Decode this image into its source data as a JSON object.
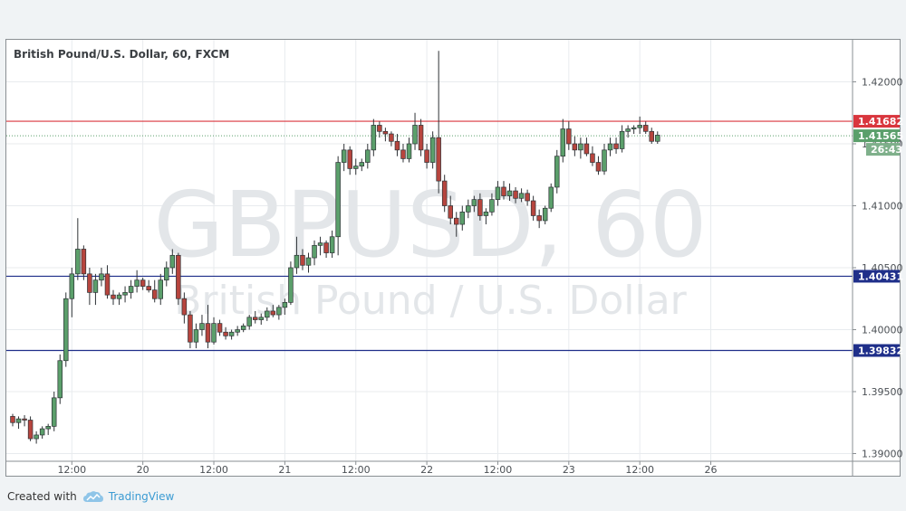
{
  "header": {
    "symbol_title": "British Pound/U.S. Dollar, 60, FXCM"
  },
  "watermark": {
    "ticker": "GBPUSD, 60",
    "name": "British Pound / U.S. Dollar"
  },
  "footer": {
    "created_with": "Created with",
    "brand": "TradingView"
  },
  "colors": {
    "up": "#5b9f6b",
    "down": "#b7453e",
    "resistance": "#d9363e",
    "support": "#1f2f8a",
    "current": "#5b9f6b"
  },
  "chart_data": {
    "type": "candlestick",
    "title": "British Pound/U.S. Dollar, 60, FXCM",
    "ylim": [
      1.3885,
      1.425
    ],
    "y_ticks": [
      "1.39000",
      "1.39500",
      "1.40000",
      "1.40500",
      "1.41000",
      "1.41500",
      "1.42000"
    ],
    "x_ticks": [
      {
        "index": 10,
        "label": "12:00"
      },
      {
        "index": 22,
        "label": "20"
      },
      {
        "index": 34,
        "label": "12:00"
      },
      {
        "index": 46,
        "label": "21"
      },
      {
        "index": 58,
        "label": "12:00"
      },
      {
        "index": 70,
        "label": "22"
      },
      {
        "index": 82,
        "label": "12:00"
      },
      {
        "index": 94,
        "label": "23"
      },
      {
        "index": 106,
        "label": "12:00"
      },
      {
        "index": 118,
        "label": "26"
      }
    ],
    "horizontal_lines": [
      {
        "price": 1.41682,
        "label": "1.41682",
        "role": "resistance"
      },
      {
        "price": 1.40431,
        "label": "1.40431",
        "role": "support"
      },
      {
        "price": 1.39832,
        "label": "1.39832",
        "role": "support"
      }
    ],
    "current_price": {
      "price": 1.41565,
      "label": "1.41565",
      "countdown": "26:43"
    },
    "candles": [
      [
        1.393,
        1.3932,
        1.3922,
        1.3925
      ],
      [
        1.3925,
        1.393,
        1.392,
        1.3928
      ],
      [
        1.3928,
        1.3931,
        1.3922,
        1.3927
      ],
      [
        1.3927,
        1.393,
        1.391,
        1.3912
      ],
      [
        1.3912,
        1.3918,
        1.3908,
        1.3915
      ],
      [
        1.3915,
        1.3922,
        1.3912,
        1.392
      ],
      [
        1.392,
        1.3924,
        1.3915,
        1.3922
      ],
      [
        1.3922,
        1.395,
        1.3918,
        1.3945
      ],
      [
        1.3945,
        1.398,
        1.394,
        1.3975
      ],
      [
        1.3975,
        1.403,
        1.397,
        1.4025
      ],
      [
        1.4025,
        1.405,
        1.401,
        1.4045
      ],
      [
        1.4045,
        1.409,
        1.404,
        1.4065
      ],
      [
        1.4065,
        1.4068,
        1.404,
        1.4045
      ],
      [
        1.4045,
        1.405,
        1.402,
        1.403
      ],
      [
        1.403,
        1.4045,
        1.402,
        1.404
      ],
      [
        1.404,
        1.405,
        1.4035,
        1.4045
      ],
      [
        1.4045,
        1.4052,
        1.4025,
        1.4028
      ],
      [
        1.4028,
        1.4032,
        1.402,
        1.4025
      ],
      [
        1.4025,
        1.403,
        1.402,
        1.4028
      ],
      [
        1.4028,
        1.4035,
        1.4022,
        1.403
      ],
      [
        1.403,
        1.404,
        1.4025,
        1.4035
      ],
      [
        1.4035,
        1.4048,
        1.403,
        1.404
      ],
      [
        1.404,
        1.4042,
        1.4032,
        1.4035
      ],
      [
        1.4035,
        1.404,
        1.403,
        1.4032
      ],
      [
        1.4032,
        1.404,
        1.4022,
        1.4025
      ],
      [
        1.4025,
        1.4045,
        1.402,
        1.404
      ],
      [
        1.404,
        1.4055,
        1.4035,
        1.405
      ],
      [
        1.405,
        1.4065,
        1.4045,
        1.406
      ],
      [
        1.406,
        1.4062,
        1.402,
        1.4025
      ],
      [
        1.4025,
        1.403,
        1.4005,
        1.4012
      ],
      [
        1.4012,
        1.4015,
        1.3985,
        1.399
      ],
      [
        1.399,
        1.4005,
        1.3985,
        1.4
      ],
      [
        1.4,
        1.4012,
        1.3995,
        1.4005
      ],
      [
        1.4005,
        1.402,
        1.3985,
        1.399
      ],
      [
        1.399,
        1.401,
        1.3988,
        1.4005
      ],
      [
        1.4005,
        1.4008,
        1.3995,
        1.3998
      ],
      [
        1.3998,
        1.4002,
        1.3992,
        1.3995
      ],
      [
        1.3995,
        1.4,
        1.3992,
        1.3998
      ],
      [
        1.3998,
        1.4003,
        1.3995,
        1.4
      ],
      [
        1.4,
        1.4005,
        1.3998,
        1.4003
      ],
      [
        1.4003,
        1.4012,
        1.4,
        1.401
      ],
      [
        1.401,
        1.4015,
        1.4005,
        1.4008
      ],
      [
        1.4008,
        1.4013,
        1.4004,
        1.401
      ],
      [
        1.401,
        1.4018,
        1.4007,
        1.4015
      ],
      [
        1.4015,
        1.402,
        1.401,
        1.4012
      ],
      [
        1.4012,
        1.402,
        1.4008,
        1.4018
      ],
      [
        1.4018,
        1.4025,
        1.4012,
        1.4022
      ],
      [
        1.4022,
        1.4055,
        1.402,
        1.405
      ],
      [
        1.405,
        1.4075,
        1.4045,
        1.406
      ],
      [
        1.406,
        1.4065,
        1.4048,
        1.4052
      ],
      [
        1.4052,
        1.4062,
        1.4046,
        1.4058
      ],
      [
        1.4058,
        1.4072,
        1.4052,
        1.4068
      ],
      [
        1.4068,
        1.4075,
        1.406,
        1.407
      ],
      [
        1.407,
        1.4072,
        1.4058,
        1.4062
      ],
      [
        1.4062,
        1.408,
        1.4058,
        1.4075
      ],
      [
        1.4075,
        1.414,
        1.406,
        1.4135
      ],
      [
        1.4135,
        1.415,
        1.4128,
        1.4145
      ],
      [
        1.4145,
        1.4148,
        1.4125,
        1.413
      ],
      [
        1.413,
        1.4138,
        1.4125,
        1.4132
      ],
      [
        1.4132,
        1.4138,
        1.4128,
        1.4135
      ],
      [
        1.4135,
        1.415,
        1.413,
        1.4145
      ],
      [
        1.4145,
        1.417,
        1.414,
        1.4165
      ],
      [
        1.4165,
        1.4168,
        1.4155,
        1.416
      ],
      [
        1.416,
        1.4163,
        1.4152,
        1.4158
      ],
      [
        1.4158,
        1.416,
        1.4148,
        1.4152
      ],
      [
        1.4152,
        1.4158,
        1.414,
        1.4145
      ],
      [
        1.4145,
        1.415,
        1.4135,
        1.4138
      ],
      [
        1.4138,
        1.4155,
        1.4135,
        1.415
      ],
      [
        1.415,
        1.4175,
        1.4145,
        1.4165
      ],
      [
        1.4165,
        1.417,
        1.414,
        1.4145
      ],
      [
        1.4145,
        1.415,
        1.413,
        1.4135
      ],
      [
        1.4135,
        1.416,
        1.413,
        1.4155
      ],
      [
        1.4155,
        1.4225,
        1.411,
        1.412
      ],
      [
        1.412,
        1.4125,
        1.4095,
        1.41
      ],
      [
        1.41,
        1.4108,
        1.4085,
        1.409
      ],
      [
        1.409,
        1.4095,
        1.4075,
        1.4085
      ],
      [
        1.4085,
        1.41,
        1.408,
        1.4095
      ],
      [
        1.4095,
        1.4105,
        1.409,
        1.41
      ],
      [
        1.41,
        1.4108,
        1.4095,
        1.4105
      ],
      [
        1.4105,
        1.411,
        1.4088,
        1.4092
      ],
      [
        1.4092,
        1.4098,
        1.4085,
        1.4095
      ],
      [
        1.4095,
        1.411,
        1.4092,
        1.4105
      ],
      [
        1.4105,
        1.412,
        1.41,
        1.4115
      ],
      [
        1.4115,
        1.412,
        1.4105,
        1.4108
      ],
      [
        1.4108,
        1.4118,
        1.4104,
        1.4112
      ],
      [
        1.4112,
        1.4115,
        1.4102,
        1.4106
      ],
      [
        1.4106,
        1.4114,
        1.4103,
        1.411
      ],
      [
        1.411,
        1.4113,
        1.41,
        1.4104
      ],
      [
        1.4104,
        1.4108,
        1.4088,
        1.4092
      ],
      [
        1.4092,
        1.4097,
        1.4082,
        1.4088
      ],
      [
        1.4088,
        1.41,
        1.4085,
        1.4098
      ],
      [
        1.4098,
        1.4118,
        1.4095,
        1.4115
      ],
      [
        1.4115,
        1.4145,
        1.411,
        1.414
      ],
      [
        1.414,
        1.417,
        1.4135,
        1.4162
      ],
      [
        1.4162,
        1.4168,
        1.4145,
        1.415
      ],
      [
        1.415,
        1.4156,
        1.414,
        1.4145
      ],
      [
        1.4145,
        1.4155,
        1.4138,
        1.415
      ],
      [
        1.415,
        1.4155,
        1.414,
        1.4142
      ],
      [
        1.4142,
        1.4148,
        1.4132,
        1.4135
      ],
      [
        1.4135,
        1.414,
        1.4125,
        1.4128
      ],
      [
        1.4128,
        1.415,
        1.4125,
        1.4145
      ],
      [
        1.4145,
        1.4155,
        1.414,
        1.415
      ],
      [
        1.415,
        1.4155,
        1.4142,
        1.4146
      ],
      [
        1.4146,
        1.4165,
        1.4143,
        1.416
      ],
      [
        1.416,
        1.4165,
        1.4155,
        1.4162
      ],
      [
        1.4162,
        1.4165,
        1.4158,
        1.4163
      ],
      [
        1.4163,
        1.4172,
        1.4158,
        1.4165
      ],
      [
        1.4165,
        1.4168,
        1.4158,
        1.416
      ],
      [
        1.416,
        1.4163,
        1.415,
        1.4152
      ],
      [
        1.4152,
        1.416,
        1.415,
        1.4157
      ]
    ]
  }
}
